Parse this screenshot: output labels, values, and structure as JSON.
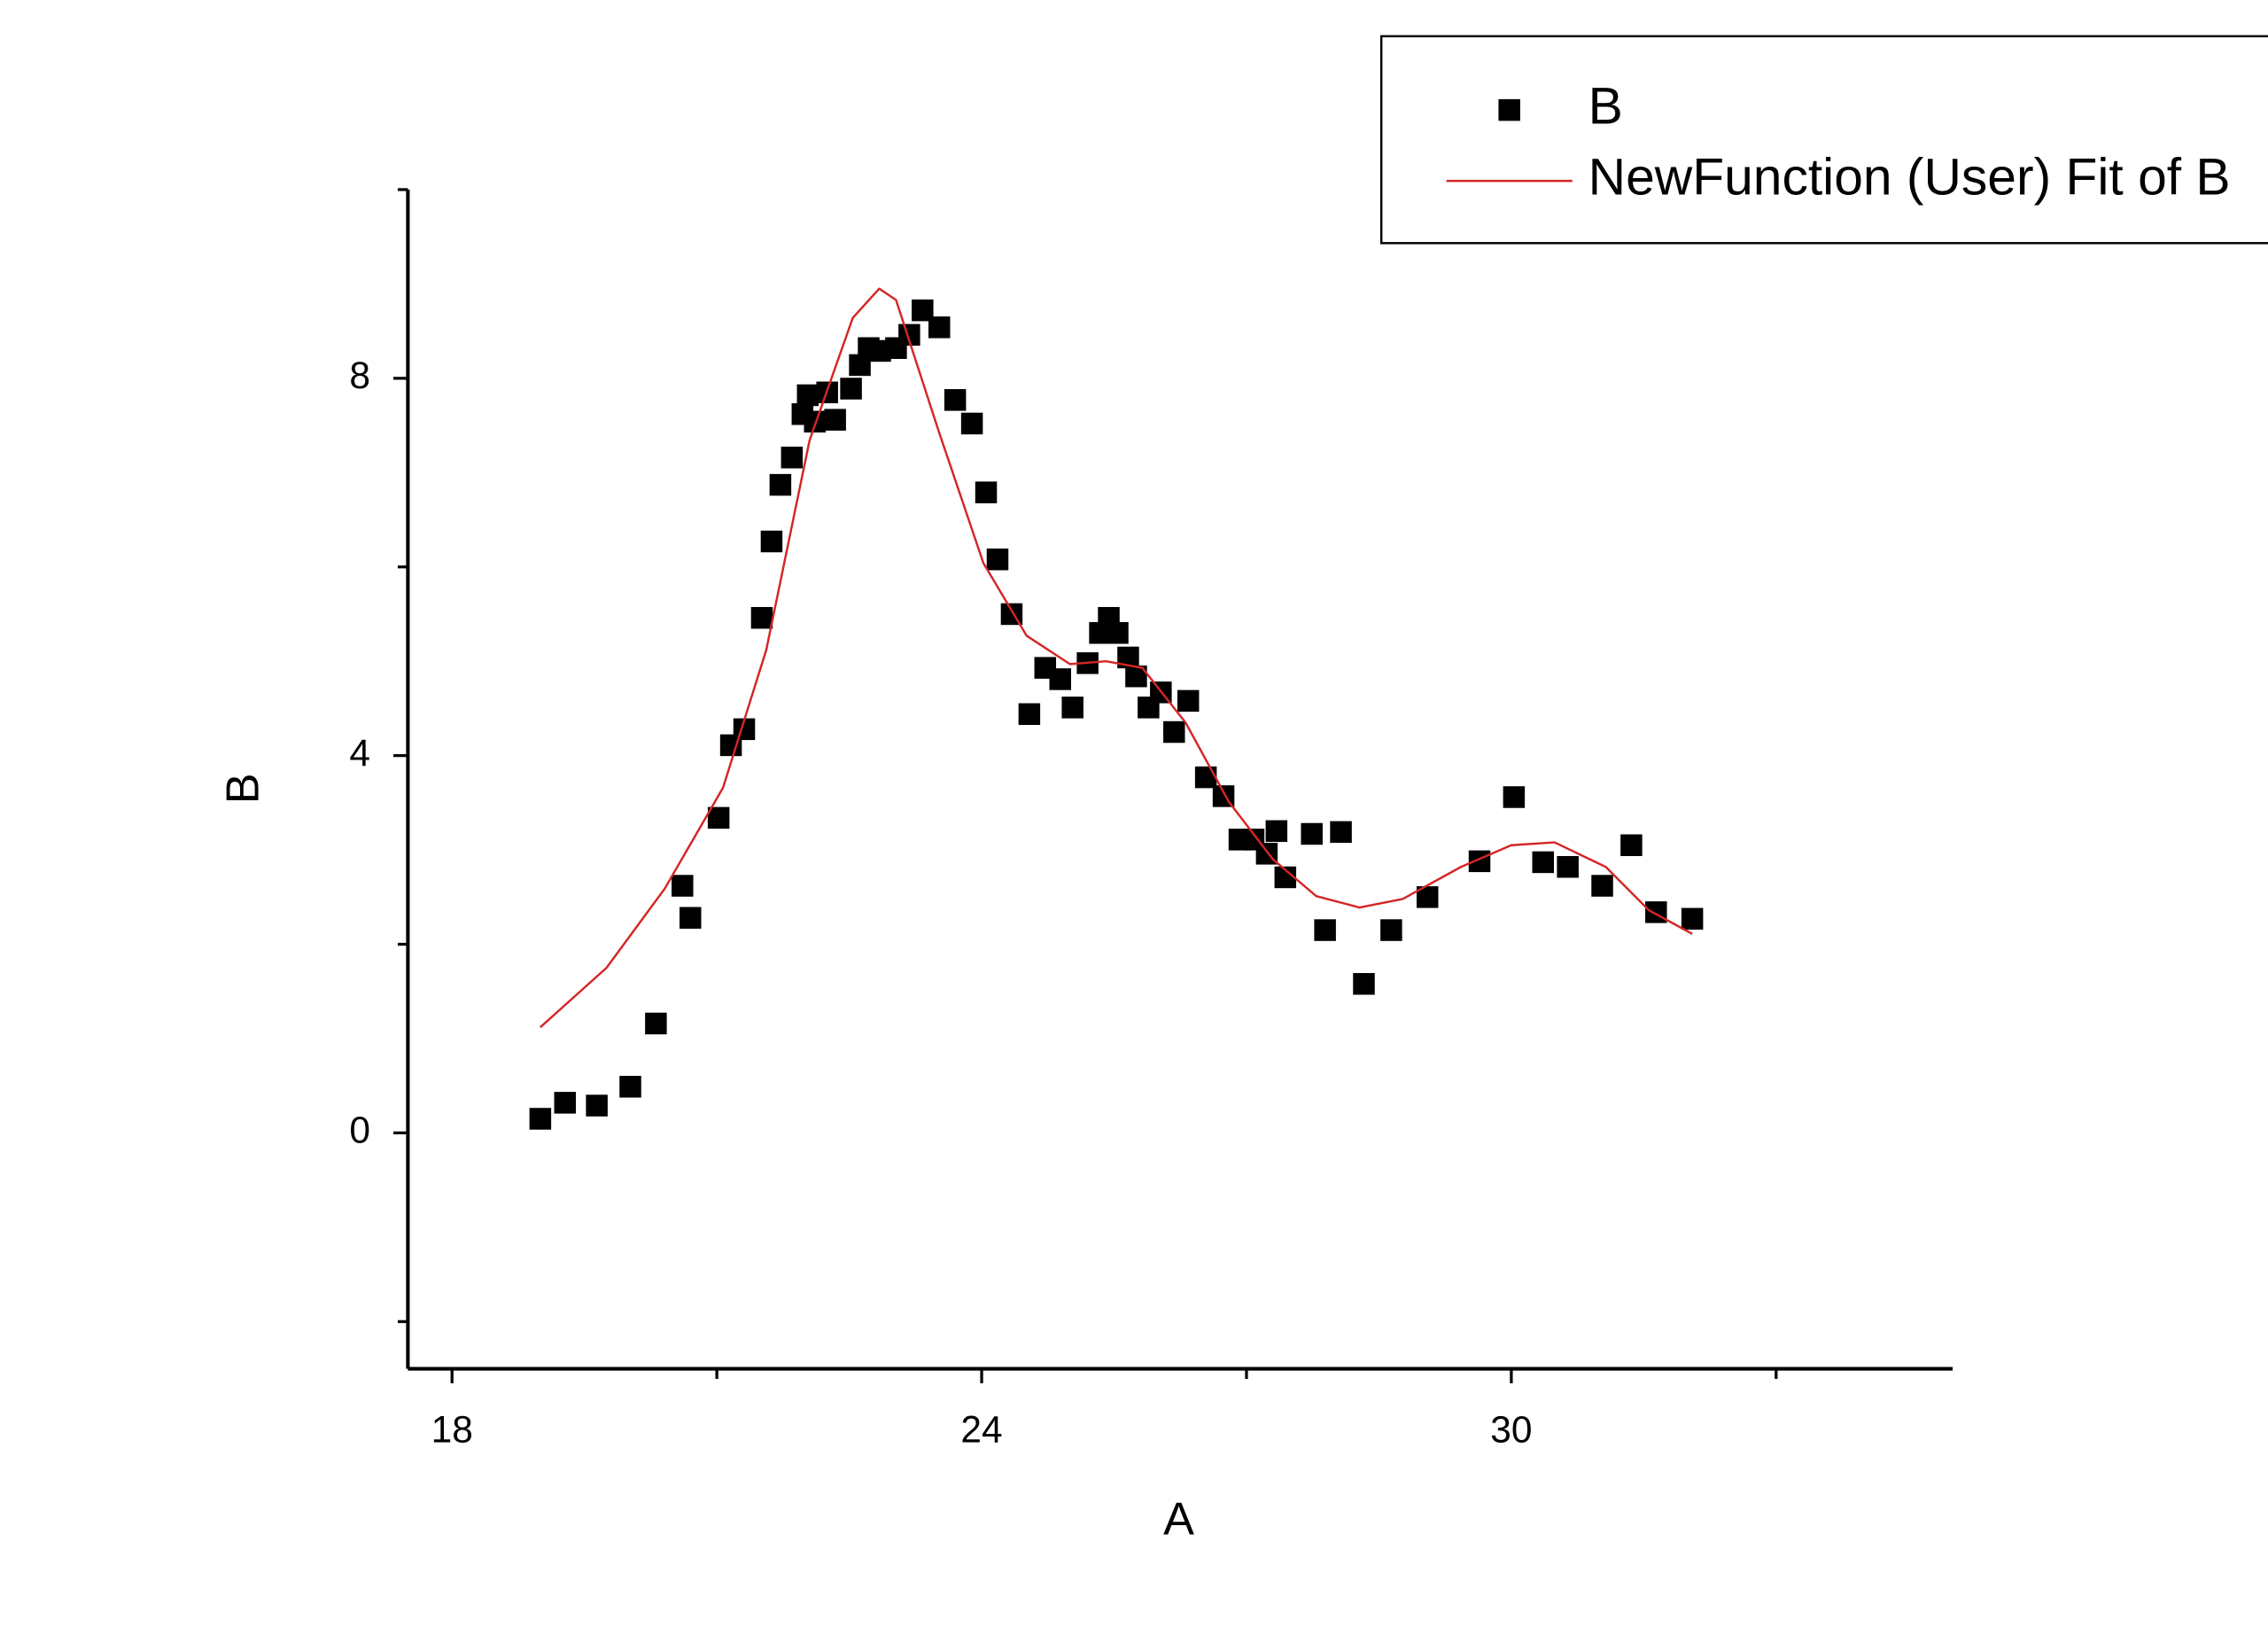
{
  "chart_data": {
    "type": "scatter",
    "xlabel": "A",
    "ylabel": "B",
    "xlim": [
      17.5,
      35
    ],
    "ylim": [
      -2.5,
      10
    ],
    "xticks": [
      18,
      24,
      30
    ],
    "xminorticks": [
      21,
      27,
      33
    ],
    "yticks": [
      0,
      4,
      8
    ],
    "yminorticks": [
      -2,
      2,
      6,
      10
    ],
    "legend": "top-right",
    "series": [
      {
        "name": "B",
        "type": "scatter",
        "color": "#000000",
        "x": [
          19.0,
          19.28,
          19.64,
          20.02,
          20.31,
          20.61,
          20.7,
          21.02,
          21.16,
          21.31,
          21.51,
          21.62,
          21.72,
          21.85,
          21.97,
          22.03,
          22.11,
          22.25,
          22.34,
          22.52,
          22.62,
          22.72,
          22.85,
          23.03,
          23.18,
          23.33,
          23.52,
          23.7,
          23.89,
          24.05,
          24.18,
          24.34,
          24.54,
          24.72,
          24.89,
          25.03,
          25.2,
          25.34,
          25.44,
          25.54,
          25.66,
          25.75,
          25.89,
          26.03,
          26.18,
          26.34,
          26.54,
          26.74,
          26.92,
          27.08,
          27.23,
          27.34,
          27.44,
          27.74,
          27.89,
          28.07,
          28.33,
          28.64,
          29.05,
          29.64,
          30.03,
          30.36,
          30.64,
          31.03,
          31.36,
          31.64,
          32.05
        ],
        "values": [
          0.15,
          0.32,
          0.29,
          0.49,
          1.16,
          2.62,
          2.28,
          3.34,
          4.11,
          4.28,
          5.46,
          6.27,
          6.87,
          7.16,
          7.62,
          7.82,
          7.54,
          7.85,
          7.56,
          7.89,
          8.14,
          8.32,
          8.29,
          8.32,
          8.46,
          8.72,
          8.54,
          7.77,
          7.52,
          6.79,
          6.08,
          5.5,
          4.44,
          4.93,
          4.81,
          4.51,
          4.98,
          5.3,
          5.46,
          5.3,
          5.04,
          4.84,
          4.51,
          4.67,
          4.25,
          4.58,
          3.77,
          3.57,
          3.11,
          3.11,
          2.96,
          3.2,
          2.71,
          3.17,
          2.15,
          3.19,
          1.58,
          2.15,
          2.5,
          2.88,
          3.56,
          2.87,
          2.82,
          2.62,
          3.05,
          2.34,
          2.27
        ]
      },
      {
        "name": "NewFunction (User) Fit of B",
        "type": "line",
        "color": "#d42626",
        "x": [
          19.0,
          19.75,
          20.41,
          21.07,
          21.56,
          22.05,
          22.54,
          22.84,
          23.03,
          23.52,
          24.02,
          24.51,
          25.0,
          25.41,
          25.82,
          26.31,
          26.8,
          27.3,
          27.79,
          28.28,
          28.77,
          29.43,
          30.0,
          30.49,
          31.07,
          31.56,
          32.05
        ],
        "values": [
          1.12,
          1.75,
          2.59,
          3.66,
          5.12,
          7.34,
          8.64,
          8.95,
          8.83,
          7.42,
          6.04,
          5.27,
          4.97,
          5.0,
          4.93,
          4.35,
          3.51,
          2.9,
          2.51,
          2.39,
          2.48,
          2.82,
          3.05,
          3.08,
          2.82,
          2.36,
          2.11
        ]
      }
    ]
  }
}
